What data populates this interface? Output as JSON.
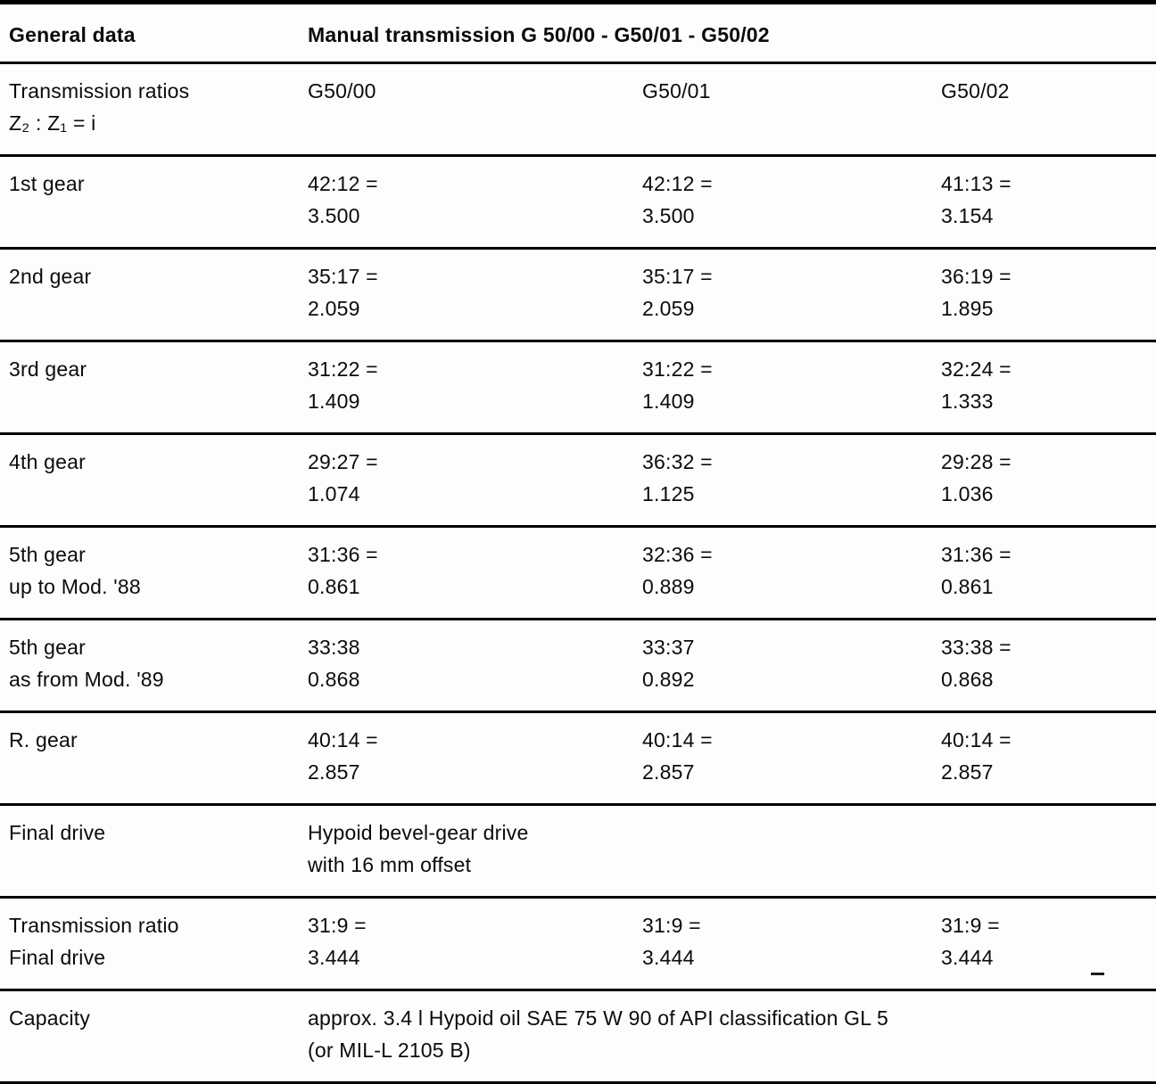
{
  "header": {
    "left": "General data",
    "right": "Manual transmission G 50/00 - G50/01 - G50/02"
  },
  "columns": {
    "label_line1": "Transmission ratios",
    "label_line2": "Z₂ : Z₁ = i",
    "col1": "G50/00",
    "col2": "G50/01",
    "col3": "G50/02"
  },
  "gears": [
    {
      "label1": "1st gear",
      "c1a": "42:12 =",
      "c1b": "3.500",
      "c2a": "42:12 =",
      "c2b": "3.500",
      "c3a": "41:13 =",
      "c3b": "3.154"
    },
    {
      "label1": "2nd gear",
      "c1a": "35:17 =",
      "c1b": "2.059",
      "c2a": "35:17 =",
      "c2b": "2.059",
      "c3a": "36:19 =",
      "c3b": "1.895"
    },
    {
      "label1": "3rd gear",
      "c1a": "31:22 =",
      "c1b": "1.409",
      "c2a": "31:22 =",
      "c2b": "1.409",
      "c3a": "32:24 =",
      "c3b": "1.333"
    },
    {
      "label1": "4th gear",
      "c1a": "29:27 =",
      "c1b": "1.074",
      "c2a": "36:32 =",
      "c2b": "1.125",
      "c3a": "29:28 =",
      "c3b": "1.036"
    },
    {
      "label1": "5th gear",
      "label2": "up to Mod. '88",
      "c1a": "31:36 =",
      "c1b": "0.861",
      "c2a": "32:36 =",
      "c2b": "0.889",
      "c3a": "31:36 =",
      "c3b": "0.861"
    },
    {
      "label1": "5th gear",
      "label2": "as from Mod. '89",
      "c1a": "33:38",
      "c1b": "0.868",
      "c2a": "33:37",
      "c2b": "0.892",
      "c3a": "33:38 =",
      "c3b": "0.868"
    },
    {
      "label1": "R. gear",
      "c1a": "40:14 =",
      "c1b": "2.857",
      "c2a": "40:14 =",
      "c2b": "2.857",
      "c3a": "40:14 =",
      "c3b": "2.857"
    }
  ],
  "final_drive": {
    "label": "Final drive",
    "line1": "Hypoid bevel-gear drive",
    "line2": "with 16 mm offset"
  },
  "final_ratio": {
    "label1": "Transmission ratio",
    "label2": "Final drive",
    "c1a": "31:9 =",
    "c1b": "3.444",
    "c2a": "31:9 =",
    "c2b": "3.444",
    "c3a": "31:9 =",
    "c3b": "3.444"
  },
  "capacity": {
    "label": "Capacity",
    "line1": "approx. 3.4 l Hypoid oil SAE 75 W 90 of API classification GL 5",
    "line2": "(or MIL-L 2105 B)"
  }
}
